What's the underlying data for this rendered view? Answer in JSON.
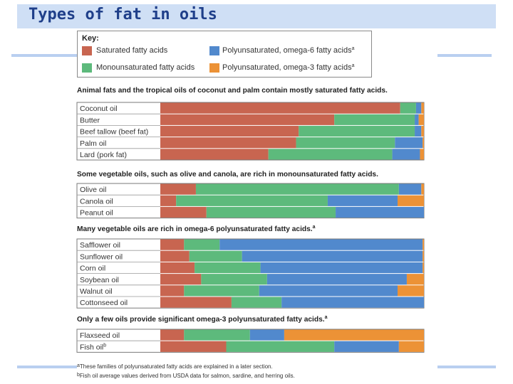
{
  "header": {
    "title": "Types of fat in oils"
  },
  "key": {
    "title": "Key:",
    "items": [
      {
        "label": "Saturated fatty acids",
        "sup": "",
        "color": "#c86550"
      },
      {
        "label": "Polyunsaturated, omega-6 fatty acids",
        "sup": "a",
        "color": "#5189cd"
      },
      {
        "label": "Monounsaturated fatty acids",
        "sup": "",
        "color": "#5dba7c"
      },
      {
        "label": "Polyunsaturated, omega-3 fatty acids",
        "sup": "a",
        "color": "#ec9236"
      }
    ]
  },
  "chart_data": {
    "type": "bar",
    "orientation": "horizontal",
    "stacked": true,
    "normalized_to_percent": true,
    "series": [
      {
        "name": "Saturated fatty acids",
        "color": "#c86550"
      },
      {
        "name": "Monounsaturated fatty acids",
        "color": "#5dba7c"
      },
      {
        "name": "Polyunsaturated, omega-6 fatty acids",
        "color": "#5189cd"
      },
      {
        "name": "Polyunsaturated, omega-3 fatty acids",
        "color": "#ec9236"
      }
    ],
    "groups": [
      {
        "heading": "Animal fats and the tropical oils of coconut and palm contain mostly saturated fatty acids.",
        "sup": "",
        "rows": [
          {
            "label": "Coconut oil",
            "sup": "",
            "values": [
              91.0,
              6.0,
              2.0,
              1.0
            ]
          },
          {
            "label": "Butter",
            "sup": "",
            "values": [
              66.0,
              30.5,
              1.5,
              2.0
            ]
          },
          {
            "label": "Beef tallow (beef fat)",
            "sup": "",
            "values": [
              52.5,
              44.0,
              2.5,
              1.0
            ]
          },
          {
            "label": "Palm oil",
            "sup": "",
            "values": [
              51.5,
              37.5,
              10.5,
              0.5
            ]
          },
          {
            "label": "Lard (pork fat)",
            "sup": "",
            "values": [
              41.0,
              47.0,
              10.5,
              1.5
            ]
          }
        ]
      },
      {
        "heading": "Some vegetable oils, such as olive and canola, are rich in monounsaturated fatty acids.",
        "sup": "",
        "rows": [
          {
            "label": "Olive oil",
            "sup": "",
            "values": [
              13.5,
              77.0,
              8.5,
              1.0
            ]
          },
          {
            "label": "Canola oil",
            "sup": "",
            "values": [
              6.0,
              57.5,
              26.5,
              10.0
            ]
          },
          {
            "label": "Peanut oil",
            "sup": "",
            "values": [
              17.5,
              49.0,
              33.5,
              0.0
            ]
          }
        ]
      },
      {
        "heading": "Many vegetable oils are rich in omega-6 polyunsaturated fatty acids.",
        "sup": "a",
        "rows": [
          {
            "label": "Safflower oil",
            "sup": "",
            "values": [
              9.0,
              13.5,
              77.0,
              0.5
            ]
          },
          {
            "label": "Sunflower oil",
            "sup": "",
            "values": [
              11.0,
              20.0,
              68.5,
              0.5
            ]
          },
          {
            "label": "Corn oil",
            "sup": "",
            "values": [
              13.0,
              25.0,
              61.5,
              0.5
            ]
          },
          {
            "label": "Soybean oil",
            "sup": "",
            "values": [
              15.5,
              25.0,
              53.0,
              6.5
            ]
          },
          {
            "label": "Walnut oil",
            "sup": "",
            "values": [
              9.0,
              28.5,
              52.5,
              10.0
            ]
          },
          {
            "label": "Cottonseed oil",
            "sup": "",
            "values": [
              27.0,
              19.0,
              54.0,
              0.0
            ]
          }
        ]
      },
      {
        "heading": "Only a few oils provide significant omega-3 polyunsaturated fatty acids.",
        "sup": "a",
        "rows": [
          {
            "label": "Flaxseed oil",
            "sup": "",
            "values": [
              9.0,
              25.0,
              13.0,
              53.0
            ]
          },
          {
            "label": "Fish oil",
            "sup": "b",
            "values": [
              25.0,
              41.0,
              24.5,
              9.5
            ]
          }
        ]
      }
    ]
  },
  "footnotes": [
    {
      "marker": "a",
      "text": "These families of polyunsaturated fatty acids are explained in a later section."
    },
    {
      "marker": "b",
      "text": "Fish oil average values derived from USDA data for salmon, sardine, and herring oils."
    }
  ]
}
